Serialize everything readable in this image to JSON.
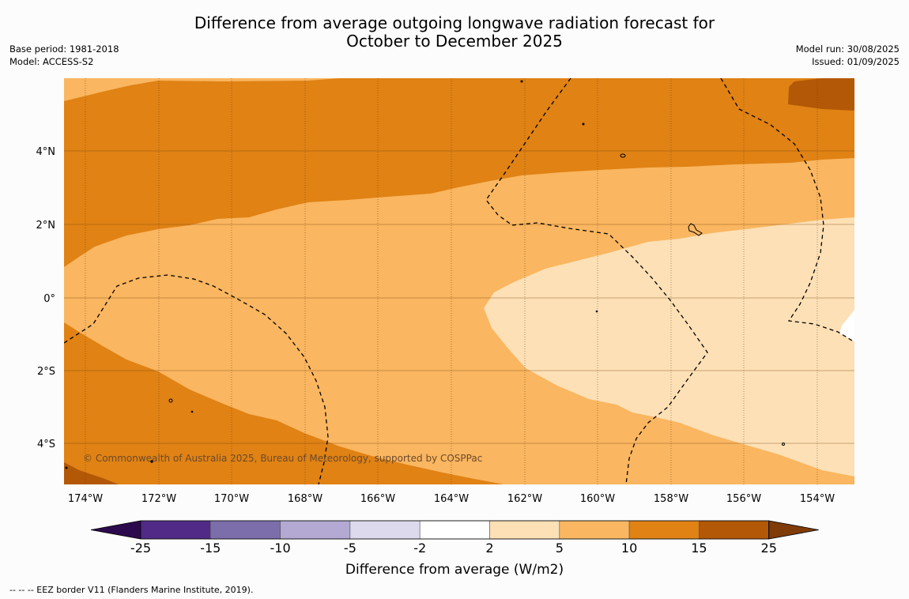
{
  "title": {
    "line1": "Difference from average outgoing longwave radiation forecast for",
    "line2": "October to December 2025"
  },
  "meta_left": {
    "base_period": "Base period: 1981-2018",
    "model": "Model: ACCESS-S2"
  },
  "meta_right": {
    "model_run": "Model run: 30/08/2025",
    "issued": "Issued: 01/09/2025"
  },
  "map": {
    "lat_labels": [
      "4°N",
      "2°N",
      "0°",
      "2°S",
      "4°S"
    ],
    "lon_labels": [
      "174°W",
      "172°W",
      "170°W",
      "168°W",
      "166°W",
      "164°W",
      "162°W",
      "160°W",
      "158°W",
      "156°W",
      "154°W"
    ],
    "copyright": "© Commonwealth of Australia 2025, Bureau of Meteorology, supported by COSPPac"
  },
  "colorbar": {
    "ticks": [
      "-25",
      "-15",
      "-10",
      "-5",
      "-2",
      "2",
      "5",
      "10",
      "15",
      "25"
    ],
    "colors": [
      "#2d0a4e",
      "#512a87",
      "#7c6eab",
      "#b3a9d3",
      "#dcdaec",
      "#ffffff",
      "#fde0b5",
      "#fab660",
      "#e08214",
      "#b35806",
      "#7f3b08"
    ],
    "label": "Difference from average (W/m2)"
  },
  "footer": "--  --  -- EEZ border V11 (Flanders Marine Institute, 2019)."
}
